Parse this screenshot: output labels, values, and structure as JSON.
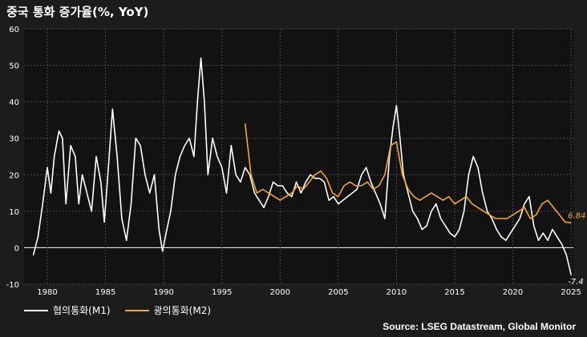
{
  "title": "중국 통화 증가율(%, YoY)",
  "source": "Source: LSEG Datastream, Global Monitor",
  "chart_data": {
    "type": "line",
    "title": "중국 통화 증가율(%, YoY)",
    "xlabel": "",
    "ylabel": "",
    "xlim": [
      1978.0,
      2025.2
    ],
    "ylim": [
      -10,
      60
    ],
    "x_ticks": [
      1980,
      1985,
      1990,
      1995,
      2000,
      2005,
      2010,
      2015,
      2020,
      2025
    ],
    "y_ticks": [
      -10,
      0,
      10,
      20,
      30,
      40,
      50,
      60
    ],
    "grid": true,
    "legend": "bottom-left",
    "annotations": [
      {
        "text": "6.84",
        "series": "광의통화(M2)",
        "x": 2025.0,
        "y": 6.84
      },
      {
        "text": "-7.4",
        "series": "협의통화(M1)",
        "x": 2025.0,
        "y": -7.4
      }
    ],
    "series": [
      {
        "name": "협의통화(M1)",
        "color": "#ffffff",
        "x": [
          1978.8,
          1979.2,
          1979.6,
          1980.0,
          1980.3,
          1980.6,
          1981.0,
          1981.3,
          1981.6,
          1982.0,
          1982.4,
          1982.7,
          1983.0,
          1983.4,
          1983.8,
          1984.2,
          1984.6,
          1984.9,
          1985.2,
          1985.6,
          1986.0,
          1986.4,
          1986.8,
          1987.2,
          1987.6,
          1988.0,
          1988.4,
          1988.8,
          1989.2,
          1989.6,
          1989.9,
          1990.2,
          1990.6,
          1991.0,
          1991.4,
          1991.8,
          1992.2,
          1992.6,
          1992.9,
          1993.2,
          1993.5,
          1993.8,
          1994.2,
          1994.6,
          1995.0,
          1995.4,
          1995.8,
          1996.2,
          1996.6,
          1997.0,
          1997.4,
          1997.8,
          1998.2,
          1998.6,
          1999.0,
          1999.4,
          1999.8,
          2000.2,
          2000.6,
          2001.0,
          2001.4,
          2001.8,
          2002.2,
          2002.6,
          2003.0,
          2003.4,
          2003.8,
          2004.2,
          2004.6,
          2005.0,
          2005.4,
          2005.8,
          2006.2,
          2006.6,
          2007.0,
          2007.4,
          2007.8,
          2008.2,
          2008.6,
          2009.0,
          2009.4,
          2009.7,
          2010.0,
          2010.3,
          2010.6,
          2011.0,
          2011.4,
          2011.8,
          2012.2,
          2012.6,
          2013.0,
          2013.4,
          2013.8,
          2014.2,
          2014.6,
          2015.0,
          2015.4,
          2015.8,
          2016.2,
          2016.6,
          2017.0,
          2017.4,
          2017.8,
          2018.2,
          2018.6,
          2019.0,
          2019.4,
          2019.8,
          2020.2,
          2020.6,
          2021.0,
          2021.4,
          2021.8,
          2022.2,
          2022.6,
          2023.0,
          2023.4,
          2023.8,
          2024.2,
          2024.6,
          2025.0
        ],
        "y": [
          -2,
          3,
          12,
          22,
          15,
          25,
          32,
          30,
          12,
          28,
          25,
          12,
          20,
          15,
          10,
          25,
          18,
          7,
          20,
          38,
          25,
          8,
          2,
          12,
          30,
          28,
          20,
          15,
          20,
          5,
          -1,
          4,
          10,
          20,
          25,
          28,
          30,
          25,
          40,
          52,
          40,
          20,
          30,
          25,
          22,
          15,
          28,
          20,
          18,
          22,
          20,
          15,
          13,
          11,
          14,
          18,
          17,
          17,
          15,
          14,
          18,
          15,
          18,
          20,
          19,
          19,
          18,
          13,
          14,
          12,
          13,
          14,
          15,
          16,
          20,
          22,
          18,
          15,
          12,
          8,
          25,
          33,
          39,
          30,
          20,
          15,
          10,
          8,
          5,
          6,
          10,
          12,
          8,
          6,
          4,
          3,
          5,
          10,
          20,
          25,
          22,
          15,
          10,
          8,
          5,
          3,
          2,
          4,
          6,
          8,
          12,
          14,
          6,
          2,
          4,
          2,
          5,
          3,
          1,
          -2,
          -7.4
        ]
      },
      {
        "name": "광의통화(M2)",
        "color": "#f5a623",
        "x": [
          1997.0,
          1997.5,
          1998.0,
          1998.5,
          1999.0,
          1999.5,
          2000.0,
          2000.5,
          2001.0,
          2001.5,
          2002.0,
          2002.5,
          2003.0,
          2003.5,
          2004.0,
          2004.5,
          2005.0,
          2005.5,
          2006.0,
          2006.5,
          2007.0,
          2007.5,
          2008.0,
          2008.5,
          2009.0,
          2009.5,
          2010.0,
          2010.5,
          2011.0,
          2011.5,
          2012.0,
          2012.5,
          2013.0,
          2013.5,
          2014.0,
          2014.5,
          2015.0,
          2015.5,
          2016.0,
          2016.5,
          2017.0,
          2017.5,
          2018.0,
          2018.5,
          2019.0,
          2019.5,
          2020.0,
          2020.5,
          2021.0,
          2021.5,
          2022.0,
          2022.5,
          2023.0,
          2023.5,
          2024.0,
          2024.5,
          2025.0
        ],
        "y": [
          34,
          20,
          15,
          16,
          15,
          14,
          13,
          14,
          15,
          17,
          16,
          18,
          20,
          21,
          19,
          15,
          14,
          17,
          18,
          17,
          17,
          18,
          16,
          17,
          20,
          28,
          29,
          20,
          16,
          14,
          13,
          14,
          15,
          14,
          13,
          14,
          12,
          13,
          14,
          12,
          11,
          10,
          9,
          8,
          8,
          8,
          9,
          10,
          11,
          8,
          9,
          12,
          13,
          11,
          9,
          7,
          6.84
        ]
      }
    ]
  }
}
